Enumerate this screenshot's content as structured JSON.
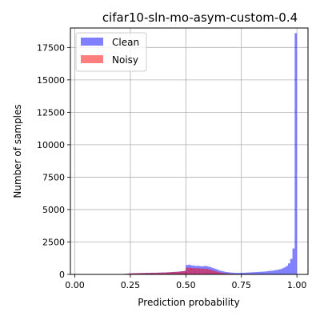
{
  "chart_data": {
    "type": "histogram",
    "title": "cifar10-sln-mo-asym-custom-0.4",
    "xlabel": "Prediction probability",
    "ylabel": "Number of samples",
    "xlim": [
      -0.02,
      1.05
    ],
    "ylim": [
      0,
      19000
    ],
    "x_ticks": [
      0.0,
      0.25,
      0.5,
      0.75,
      1.0
    ],
    "x_tick_labels": [
      "0.00",
      "0.25",
      "0.50",
      "0.75",
      "1.00"
    ],
    "y_ticks": [
      0,
      2500,
      5000,
      7500,
      10000,
      12500,
      15000,
      17500
    ],
    "y_tick_labels": [
      "0",
      "2500",
      "5000",
      "7500",
      "10000",
      "12500",
      "15000",
      "17500"
    ],
    "grid": true,
    "legend_position": "top-left",
    "bin_width": 0.01,
    "series": [
      {
        "name": "Clean",
        "color": "#0000ff",
        "alpha": 0.5,
        "bins": [
          [
            0.22,
            40
          ],
          [
            0.23,
            60
          ],
          [
            0.24,
            70
          ],
          [
            0.25,
            80
          ],
          [
            0.26,
            90
          ],
          [
            0.27,
            90
          ],
          [
            0.28,
            100
          ],
          [
            0.29,
            100
          ],
          [
            0.3,
            110
          ],
          [
            0.31,
            110
          ],
          [
            0.32,
            120
          ],
          [
            0.33,
            120
          ],
          [
            0.34,
            130
          ],
          [
            0.35,
            130
          ],
          [
            0.36,
            130
          ],
          [
            0.37,
            140
          ],
          [
            0.38,
            140
          ],
          [
            0.39,
            150
          ],
          [
            0.4,
            150
          ],
          [
            0.41,
            160
          ],
          [
            0.42,
            170
          ],
          [
            0.43,
            180
          ],
          [
            0.44,
            190
          ],
          [
            0.45,
            200
          ],
          [
            0.46,
            210
          ],
          [
            0.47,
            230
          ],
          [
            0.48,
            250
          ],
          [
            0.49,
            270
          ],
          [
            0.5,
            720
          ],
          [
            0.51,
            750
          ],
          [
            0.52,
            700
          ],
          [
            0.53,
            680
          ],
          [
            0.54,
            650
          ],
          [
            0.55,
            660
          ],
          [
            0.56,
            640
          ],
          [
            0.57,
            620
          ],
          [
            0.58,
            650
          ],
          [
            0.59,
            640
          ],
          [
            0.6,
            600
          ],
          [
            0.61,
            540
          ],
          [
            0.62,
            480
          ],
          [
            0.63,
            420
          ],
          [
            0.64,
            350
          ],
          [
            0.65,
            290
          ],
          [
            0.66,
            250
          ],
          [
            0.67,
            210
          ],
          [
            0.68,
            180
          ],
          [
            0.69,
            160
          ],
          [
            0.7,
            140
          ],
          [
            0.71,
            130
          ],
          [
            0.72,
            120
          ],
          [
            0.73,
            120
          ],
          [
            0.74,
            120
          ],
          [
            0.75,
            130
          ],
          [
            0.76,
            130
          ],
          [
            0.77,
            140
          ],
          [
            0.78,
            150
          ],
          [
            0.79,
            160
          ],
          [
            0.8,
            170
          ],
          [
            0.81,
            180
          ],
          [
            0.82,
            190
          ],
          [
            0.83,
            200
          ],
          [
            0.84,
            210
          ],
          [
            0.85,
            220
          ],
          [
            0.86,
            240
          ],
          [
            0.87,
            260
          ],
          [
            0.88,
            280
          ],
          [
            0.89,
            300
          ],
          [
            0.9,
            330
          ],
          [
            0.91,
            360
          ],
          [
            0.92,
            400
          ],
          [
            0.93,
            460
          ],
          [
            0.94,
            540
          ],
          [
            0.95,
            650
          ],
          [
            0.96,
            850
          ],
          [
            0.97,
            1200
          ],
          [
            0.98,
            2000
          ],
          [
            0.99,
            18600
          ]
        ]
      },
      {
        "name": "Noisy",
        "color": "#ff0000",
        "alpha": 0.5,
        "bins": [
          [
            0.24,
            60
          ],
          [
            0.25,
            80
          ],
          [
            0.26,
            90
          ],
          [
            0.27,
            90
          ],
          [
            0.28,
            100
          ],
          [
            0.29,
            100
          ],
          [
            0.3,
            100
          ],
          [
            0.31,
            110
          ],
          [
            0.32,
            110
          ],
          [
            0.33,
            110
          ],
          [
            0.34,
            120
          ],
          [
            0.35,
            120
          ],
          [
            0.36,
            120
          ],
          [
            0.37,
            130
          ],
          [
            0.38,
            130
          ],
          [
            0.39,
            140
          ],
          [
            0.4,
            140
          ],
          [
            0.41,
            150
          ],
          [
            0.42,
            160
          ],
          [
            0.43,
            170
          ],
          [
            0.44,
            180
          ],
          [
            0.45,
            190
          ],
          [
            0.46,
            200
          ],
          [
            0.47,
            220
          ],
          [
            0.48,
            240
          ],
          [
            0.49,
            260
          ],
          [
            0.5,
            500
          ],
          [
            0.51,
            520
          ],
          [
            0.52,
            500
          ],
          [
            0.53,
            480
          ],
          [
            0.54,
            470
          ],
          [
            0.55,
            470
          ],
          [
            0.56,
            460
          ],
          [
            0.57,
            440
          ],
          [
            0.58,
            430
          ],
          [
            0.59,
            420
          ],
          [
            0.6,
            390
          ],
          [
            0.61,
            340
          ],
          [
            0.62,
            290
          ],
          [
            0.63,
            240
          ],
          [
            0.64,
            190
          ],
          [
            0.65,
            150
          ],
          [
            0.66,
            120
          ],
          [
            0.67,
            90
          ],
          [
            0.68,
            70
          ],
          [
            0.69,
            60
          ],
          [
            0.7,
            50
          ],
          [
            0.71,
            40
          ],
          [
            0.72,
            30
          ],
          [
            0.73,
            25
          ],
          [
            0.74,
            20
          ],
          [
            0.75,
            15
          ],
          [
            0.76,
            10
          ],
          [
            0.77,
            10
          ]
        ]
      }
    ]
  }
}
